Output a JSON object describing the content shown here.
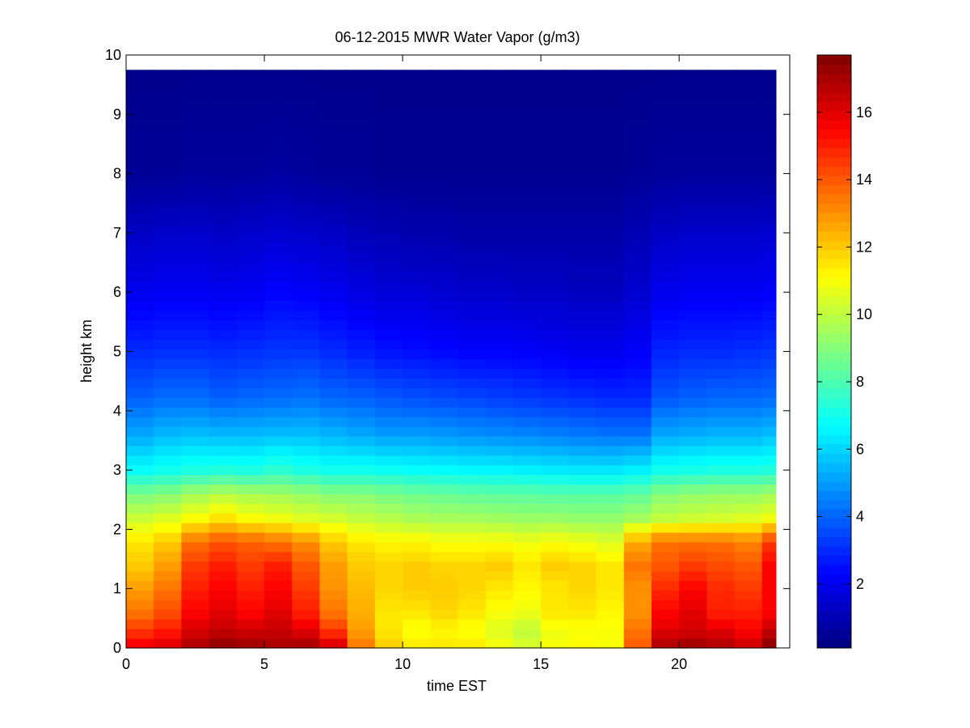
{
  "chart_data": {
    "type": "heatmap",
    "title": "06-12-2015 MWR Water Vapor (g/m3)",
    "xlabel": "time EST",
    "ylabel": "height km",
    "xlim": [
      0,
      24
    ],
    "ylim": [
      0,
      10
    ],
    "x_ticks": [
      0,
      5,
      10,
      15,
      20
    ],
    "y_ticks": [
      0,
      1,
      2,
      3,
      4,
      5,
      6,
      7,
      8,
      9,
      10
    ],
    "colorbar": {
      "min": 0.1,
      "max": 17.7,
      "ticks": [
        2,
        4,
        6,
        8,
        10,
        12,
        14,
        16
      ],
      "colormap": "jet"
    },
    "data_extent": {
      "x": [
        0,
        23.5
      ],
      "y": [
        0,
        9.75
      ]
    },
    "time_hours": [
      0.5,
      1.5,
      2.5,
      3.5,
      4.5,
      5.5,
      6.5,
      7.5,
      8.5,
      9.5,
      10.5,
      11.5,
      12.5,
      13.5,
      14.5,
      15.5,
      16.5,
      17.5,
      18.5,
      19.5,
      20.5,
      21.5,
      22.5,
      23.5
    ],
    "profile_heights_km": [
      0.0,
      0.3,
      0.6,
      1.0,
      1.4,
      1.8,
      2.2,
      2.6,
      3.0,
      3.6,
      4.2,
      5.0,
      6.0,
      7.0,
      8.0,
      9.75
    ],
    "water_vapor_g_m3": [
      [
        16.0,
        14.5,
        13.5,
        12.8,
        12.0,
        11.5,
        10.2,
        8.8,
        6.8,
        5.2,
        4.0,
        3.0,
        2.0,
        1.3,
        0.5,
        0.3
      ],
      [
        16.2,
        15.0,
        14.2,
        13.5,
        12.8,
        12.0,
        10.5,
        9.0,
        7.0,
        5.5,
        4.2,
        3.1,
        2.1,
        1.4,
        0.5,
        0.3
      ],
      [
        17.0,
        16.2,
        15.5,
        15.0,
        14.5,
        13.5,
        11.0,
        9.5,
        7.2,
        5.6,
        4.2,
        3.1,
        2.1,
        1.4,
        0.6,
        0.3
      ],
      [
        17.5,
        16.5,
        16.0,
        15.5,
        15.0,
        14.0,
        11.5,
        9.8,
        7.3,
        5.5,
        4.0,
        3.0,
        2.0,
        1.3,
        0.6,
        0.3
      ],
      [
        17.3,
        16.3,
        15.5,
        15.0,
        14.5,
        13.8,
        11.0,
        9.6,
        7.2,
        5.5,
        4.1,
        3.1,
        2.1,
        1.4,
        0.6,
        0.3
      ],
      [
        17.0,
        16.5,
        16.0,
        15.5,
        15.0,
        13.5,
        10.8,
        9.5,
        7.5,
        5.6,
        4.2,
        3.2,
        2.3,
        1.5,
        0.7,
        0.3
      ],
      [
        17.2,
        16.0,
        15.0,
        14.5,
        14.0,
        13.0,
        10.5,
        9.3,
        7.2,
        5.6,
        4.3,
        3.2,
        2.2,
        1.4,
        0.6,
        0.3
      ],
      [
        16.5,
        14.5,
        13.5,
        13.0,
        12.8,
        12.0,
        10.3,
        9.0,
        7.0,
        5.4,
        4.1,
        3.0,
        2.0,
        1.3,
        0.5,
        0.3
      ],
      [
        13.5,
        12.8,
        12.5,
        12.3,
        12.0,
        11.5,
        10.0,
        9.0,
        7.0,
        5.2,
        4.0,
        2.8,
        1.8,
        1.1,
        0.5,
        0.3
      ],
      [
        12.0,
        11.5,
        11.5,
        11.8,
        11.8,
        11.2,
        9.8,
        8.8,
        6.9,
        5.0,
        3.8,
        2.6,
        1.6,
        1.0,
        0.4,
        0.3
      ],
      [
        11.5,
        11.0,
        11.5,
        12.0,
        12.0,
        11.2,
        9.6,
        8.6,
        6.8,
        5.0,
        3.7,
        2.5,
        1.6,
        0.9,
        0.4,
        0.3
      ],
      [
        11.5,
        11.2,
        11.8,
        12.0,
        11.8,
        11.0,
        9.5,
        8.5,
        6.7,
        4.9,
        3.6,
        2.4,
        1.5,
        0.9,
        0.4,
        0.3
      ],
      [
        11.5,
        11.0,
        11.5,
        11.8,
        11.8,
        11.0,
        9.5,
        8.4,
        6.6,
        4.8,
        3.5,
        2.3,
        1.4,
        0.8,
        0.4,
        0.3
      ],
      [
        11.0,
        10.5,
        11.0,
        11.5,
        12.0,
        11.0,
        9.4,
        8.3,
        6.6,
        4.7,
        3.4,
        2.3,
        1.4,
        0.8,
        0.4,
        0.3
      ],
      [
        10.5,
        10.0,
        10.8,
        11.2,
        11.5,
        10.8,
        9.3,
        8.3,
        6.5,
        4.6,
        3.3,
        2.2,
        1.3,
        0.8,
        0.4,
        0.3
      ],
      [
        11.0,
        10.8,
        11.5,
        11.5,
        12.0,
        11.0,
        9.3,
        8.2,
        6.4,
        4.5,
        3.2,
        2.1,
        1.3,
        0.8,
        0.4,
        0.3
      ],
      [
        11.2,
        11.0,
        11.5,
        11.8,
        11.8,
        10.8,
        9.2,
        8.2,
        6.3,
        4.4,
        3.1,
        2.0,
        1.2,
        0.8,
        0.4,
        0.3
      ],
      [
        11.0,
        11.0,
        11.2,
        11.5,
        11.5,
        10.5,
        9.2,
        8.2,
        6.3,
        4.3,
        3.0,
        2.0,
        1.2,
        0.8,
        0.4,
        0.3
      ],
      [
        14.0,
        13.5,
        13.0,
        13.0,
        13.5,
        12.5,
        9.5,
        8.4,
        6.5,
        4.3,
        3.0,
        2.2,
        1.5,
        1.0,
        0.5,
        0.3
      ],
      [
        17.0,
        16.0,
        15.5,
        14.8,
        14.0,
        13.5,
        10.0,
        9.0,
        7.0,
        5.2,
        3.8,
        2.9,
        2.0,
        1.3,
        0.6,
        0.3
      ],
      [
        17.3,
        16.2,
        16.0,
        15.5,
        14.5,
        13.5,
        10.2,
        9.2,
        7.1,
        5.3,
        4.0,
        3.0,
        2.1,
        1.4,
        0.6,
        0.3
      ],
      [
        17.0,
        16.0,
        15.0,
        14.8,
        14.2,
        13.5,
        10.3,
        9.3,
        7.2,
        5.4,
        4.1,
        3.0,
        2.1,
        1.4,
        0.6,
        0.3
      ],
      [
        16.5,
        15.5,
        15.0,
        14.5,
        14.0,
        13.2,
        10.5,
        9.3,
        7.2,
        5.4,
        4.1,
        3.1,
        2.1,
        1.4,
        0.6,
        0.3
      ],
      [
        17.7,
        16.5,
        15.5,
        15.5,
        15.5,
        14.5,
        10.8,
        9.5,
        7.3,
        5.6,
        4.2,
        3.2,
        2.2,
        1.5,
        0.6,
        0.3
      ]
    ]
  }
}
